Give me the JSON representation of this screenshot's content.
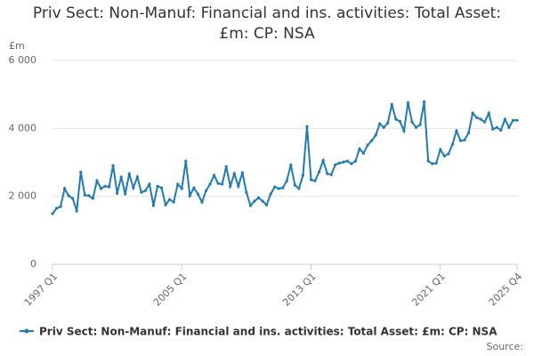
{
  "chart_data": {
    "type": "line",
    "title": "Priv Sect: Non-Manuf: Financial and ins. activities: Total Asset: £m: CP: NSA",
    "y_axis_label": "£m",
    "source": "Source:",
    "categories": [
      "1997 Q1",
      null,
      null,
      null,
      null,
      null,
      null,
      null,
      null,
      null,
      null,
      null,
      null,
      null,
      null,
      null,
      null,
      null,
      null,
      null,
      null,
      null,
      null,
      null,
      null,
      null,
      null,
      null,
      null,
      null,
      null,
      null,
      "2005 Q1",
      null,
      null,
      null,
      null,
      null,
      null,
      null,
      null,
      null,
      null,
      null,
      null,
      null,
      null,
      null,
      null,
      null,
      null,
      null,
      null,
      null,
      null,
      null,
      null,
      null,
      null,
      null,
      null,
      null,
      null,
      null,
      "2013 Q1",
      null,
      null,
      null,
      null,
      null,
      null,
      null,
      null,
      null,
      null,
      null,
      null,
      null,
      null,
      null,
      null,
      null,
      null,
      null,
      null,
      null,
      null,
      null,
      null,
      null,
      null,
      null,
      null,
      null,
      null,
      null,
      "2021 Q1",
      null,
      null,
      null,
      null,
      null,
      null,
      null,
      null,
      null,
      null,
      null,
      null,
      null,
      null,
      null,
      null,
      null,
      null,
      "2025 Q4"
    ],
    "series": [
      {
        "name": "Priv Sect: Non-Manuf: Financial and ins. activities: Total Asset: £m: CP: NSA",
        "color": "#1f7bb6",
        "values": [
          1490,
          1650,
          1700,
          2230,
          2020,
          1940,
          1570,
          2720,
          2040,
          2020,
          1940,
          2460,
          2230,
          2300,
          2280,
          2910,
          2090,
          2570,
          2070,
          2670,
          2250,
          2570,
          2120,
          2170,
          2360,
          1730,
          2300,
          2250,
          1750,
          1910,
          1830,
          2360,
          2230,
          3040,
          2020,
          2250,
          2070,
          1830,
          2170,
          2360,
          2620,
          2380,
          2360,
          2880,
          2300,
          2670,
          2300,
          2700,
          2120,
          1730,
          1860,
          1960,
          1860,
          1750,
          2070,
          2280,
          2230,
          2250,
          2460,
          2930,
          2330,
          2230,
          2620,
          4060,
          2490,
          2460,
          2720,
          3060,
          2670,
          2640,
          2930,
          2980,
          3010,
          3040,
          2960,
          3040,
          3400,
          3270,
          3510,
          3640,
          3800,
          4140,
          4030,
          4160,
          4710,
          4270,
          4210,
          3930,
          4760,
          4190,
          4030,
          4110,
          4790,
          3040,
          2960,
          2980,
          3380,
          3190,
          3250,
          3530,
          3930,
          3640,
          3660,
          3870,
          4450,
          4320,
          4270,
          4190,
          4450,
          3980,
          4030,
          3950,
          4270,
          4030,
          4240,
          4240
        ]
      }
    ],
    "ylim": [
      0,
      6000
    ],
    "yticks": [
      0,
      {
        "value": 2000,
        "label": "2 000"
      },
      {
        "value": 4000,
        "label": "4 000"
      },
      {
        "value": 6000,
        "label": "6 000"
      }
    ],
    "grid": true
  }
}
